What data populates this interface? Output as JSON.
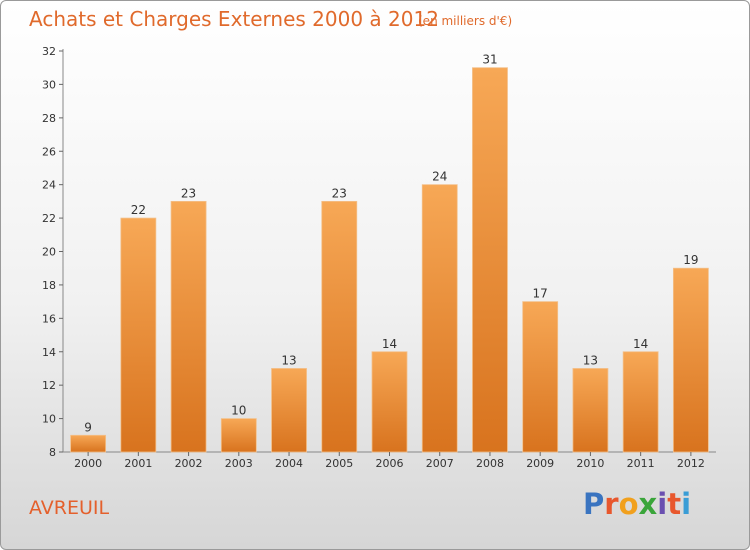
{
  "title": "Achats et Charges Externes 2000 à 2012",
  "unit": "(en milliers d'€)",
  "commune": "AVREUIL",
  "brand": {
    "letters": [
      "P",
      "r",
      "o",
      "x",
      "i",
      "t",
      "i"
    ],
    "colors": [
      "#3a74c0",
      "#e8572d",
      "#f1a01d",
      "#3aa53a",
      "#6a4fb0",
      "#e8572d",
      "#3a9dd6"
    ]
  },
  "colors": {
    "bar_light": "#f7a856",
    "bar_dark": "#d8731e",
    "accent": "#e06a2c"
  },
  "chart_data": {
    "type": "bar",
    "title": "Achats et Charges Externes 2000 à 2012",
    "subtitle": "(en milliers d'€)",
    "xlabel": "",
    "ylabel": "",
    "categories": [
      "2000",
      "2001",
      "2002",
      "2003",
      "2004",
      "2005",
      "2006",
      "2007",
      "2008",
      "2009",
      "2010",
      "2011",
      "2012"
    ],
    "values": [
      9,
      22,
      23,
      10,
      13,
      23,
      14,
      24,
      31,
      17,
      13,
      14,
      19
    ],
    "ylim": [
      8,
      32
    ],
    "yticks": [
      8,
      10,
      12,
      14,
      16,
      18,
      20,
      22,
      24,
      26,
      28,
      30,
      32
    ],
    "grid": false,
    "data_labels": true
  }
}
